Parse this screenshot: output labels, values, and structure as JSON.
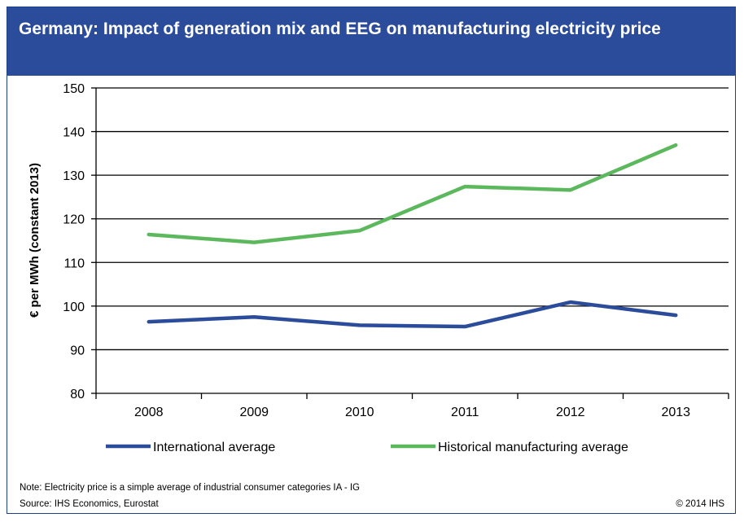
{
  "header": {
    "title": "Germany: Impact of generation mix and EEG on manufacturing electricity price"
  },
  "chart_data": {
    "type": "line",
    "title": "Germany: Impact of generation mix and EEG on manufacturing electricity price",
    "xlabel": "",
    "ylabel": "€ per MWh (constant 2013)",
    "categories": [
      "2008",
      "2009",
      "2010",
      "2011",
      "2012",
      "2013"
    ],
    "ylim": [
      80,
      150
    ],
    "yticks": [
      80,
      90,
      100,
      110,
      120,
      130,
      140,
      150
    ],
    "grid": "horizontal",
    "legend_position": "bottom",
    "series": [
      {
        "name": "International average",
        "color": "#2b4b9b",
        "values": [
          96.4,
          97.5,
          95.6,
          95.3,
          100.9,
          97.9
        ]
      },
      {
        "name": "Historical manufacturing average",
        "color": "#5cb85c",
        "values": [
          116.4,
          114.6,
          117.3,
          127.4,
          126.6,
          136.9
        ]
      }
    ]
  },
  "footer": {
    "note": "Note: Electricity price is a simple average of industrial consumer categories IA - IG",
    "source": "Source: IHS Economics, Eurostat",
    "copyright": "© 2014 IHS"
  }
}
